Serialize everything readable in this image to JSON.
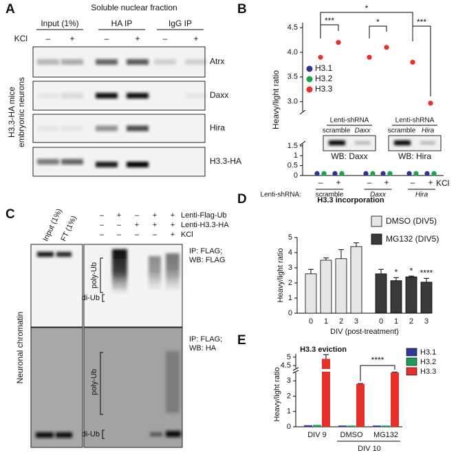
{
  "panel_labels": [
    "A",
    "B",
    "C",
    "D",
    "E"
  ],
  "panel_a": {
    "title": "Soluble nuclear fraction",
    "columns": [
      "Input (1%)",
      "HA IP",
      "IgG IP"
    ],
    "kcl": "KCl",
    "signs": [
      "–",
      "+",
      "–",
      "+",
      "–",
      "+"
    ],
    "rows": [
      "Atrx",
      "Daxx",
      "Hira",
      "H3.3-HA"
    ],
    "side_label": [
      "H3.3-HA mice",
      "embryonic neurons"
    ]
  },
  "panel_c": {
    "lane_rows": [
      {
        "label": "Lenti-Flag-Ub",
        "signs": [
          "–",
          "+",
          "–",
          "+",
          "+"
        ]
      },
      {
        "label": "Lenti-H3.3-HA",
        "signs": [
          "–",
          "–",
          "+",
          "+",
          "+"
        ]
      },
      {
        "label": "KCl",
        "signs": [
          "–",
          "–",
          "–",
          "–",
          "+"
        ]
      }
    ],
    "left_lanes": [
      "Input (1%)",
      "FT (1%)"
    ],
    "top_blot": [
      "IP: FLAG;",
      "WB: FLAG"
    ],
    "bottom_blot": [
      "IP: FLAG;",
      "WB: HA"
    ],
    "top_bands": [
      "poly-Ub",
      "di-Ub"
    ],
    "bottom_bands": [
      "poly-Ub",
      "di-Ub"
    ],
    "side_label": "Neuronal chromatin"
  },
  "chart_data": [
    {
      "type": "dot",
      "ylabel": "Heavy/light ratio",
      "categories": [
        "–",
        "+",
        "–",
        "+",
        "–",
        "+"
      ],
      "groups": [
        "scramble",
        "Daxx",
        "Hira"
      ],
      "group_axis_label": "Lenti-shRNA:",
      "x_extra_label": "KCl",
      "ylim_lower": [
        0,
        1.6
      ],
      "ylim_upper": [
        2.8,
        4.6
      ],
      "yticks": [
        0,
        0.5,
        1,
        1.5,
        {
          "value": 3,
          "label": "3.0"
        },
        3.5,
        {
          "value": 4,
          "label": "4.0"
        },
        4.5
      ],
      "series": [
        {
          "name": "H3.1",
          "color": "#2e3192",
          "values": [
            0.1,
            0.1,
            0.1,
            0.1,
            0.1,
            0.1
          ]
        },
        {
          "name": "H3.2",
          "color": "#1aa34a",
          "values": [
            0.1,
            0.1,
            0.1,
            0.1,
            0.1,
            0.1
          ]
        },
        {
          "name": "H3.3",
          "color": "#e8302a",
          "values": [
            3.9,
            4.2,
            3.9,
            4.1,
            3.8,
            2.97
          ]
        }
      ],
      "significance": [
        "***",
        "*",
        "*",
        "***"
      ],
      "insets": [
        {
          "title": "Lenti-shRNA",
          "lanes": [
            "scramble",
            "Daxx"
          ],
          "caption": "WB: Daxx"
        },
        {
          "title": "Lenti-shRNA",
          "lanes": [
            "scramble",
            "Hira"
          ],
          "caption": "WB: Hira"
        }
      ]
    },
    {
      "type": "bar",
      "title": "H3.3 incorporation",
      "ylabel": "Heavy/light ratio",
      "xlabel": "DIV (post-treatment)",
      "categories": [
        "0",
        "1",
        "2",
        "3"
      ],
      "ylim": [
        0,
        5
      ],
      "yticks": [
        0,
        1,
        2,
        3,
        4,
        5
      ],
      "series": [
        {
          "name": "DMSO (DIV5)",
          "color": "#e6e6e6",
          "values": [
            2.6,
            3.5,
            3.6,
            4.4
          ],
          "errors": [
            0.3,
            0.15,
            0.6,
            0.25
          ]
        },
        {
          "name": "MG132 (DIV5)",
          "color": "#3a3a3a",
          "values": [
            2.6,
            2.15,
            2.4,
            2.05
          ],
          "errors": [
            0.3,
            0.2,
            0.05,
            0.25
          ],
          "annotations": [
            null,
            "*",
            "*",
            "****"
          ]
        }
      ]
    },
    {
      "type": "bar",
      "title": "H3.3 eviction",
      "ylabel": "Heavy/light ratio",
      "categories": [
        "DIV 9",
        "DMSO",
        "MG132"
      ],
      "group_label": "DIV 10",
      "ylim_lower": [
        0,
        3.6
      ],
      "ylim_upper": [
        4.3,
        5.2
      ],
      "yticks": [
        0,
        1,
        2,
        3,
        4.5,
        5
      ],
      "series": [
        {
          "name": "H3.1",
          "color": "#2b3a98",
          "values": [
            0.1,
            0.08,
            0.08
          ]
        },
        {
          "name": "H3.2",
          "color": "#1a9e5a",
          "values": [
            0.12,
            0.08,
            0.08
          ]
        },
        {
          "name": "H3.3",
          "color": "#e8302a",
          "values": [
            4.9,
            2.8,
            3.55
          ],
          "errors": [
            0.25,
            0.03,
            0.03
          ]
        }
      ],
      "significance": "****"
    }
  ]
}
